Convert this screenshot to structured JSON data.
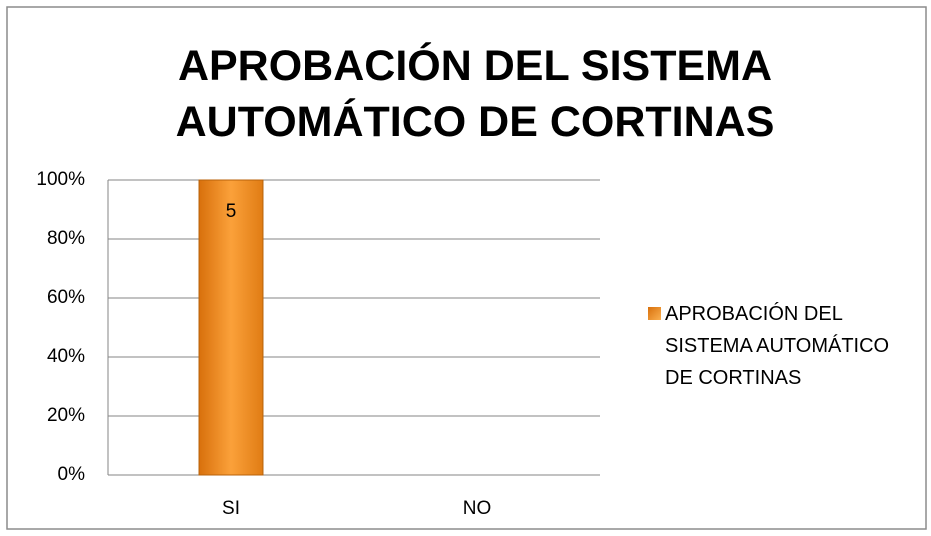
{
  "chart_data": {
    "type": "bar",
    "title": "APROBACIÓN DEL SISTEMA AUTOMÁTICO DE CORTINAS",
    "categories": [
      "SI",
      "NO"
    ],
    "series": [
      {
        "name": "APROBACIÓN DEL SISTEMA AUTOMÁTICO DE CORTINAS",
        "color": "#f39a2c",
        "values": [
          100,
          0
        ]
      }
    ],
    "data_labels": [
      "5",
      null
    ],
    "ylim": [
      0,
      100
    ],
    "yticks": [
      {
        "value": 0,
        "label": "0%"
      },
      {
        "value": 20,
        "label": "20%"
      },
      {
        "value": 40,
        "label": "40%"
      },
      {
        "value": 60,
        "label": "60%"
      },
      {
        "value": 80,
        "label": "80%"
      },
      {
        "value": 100,
        "label": "100%"
      }
    ],
    "grid": true,
    "legend": "right"
  }
}
